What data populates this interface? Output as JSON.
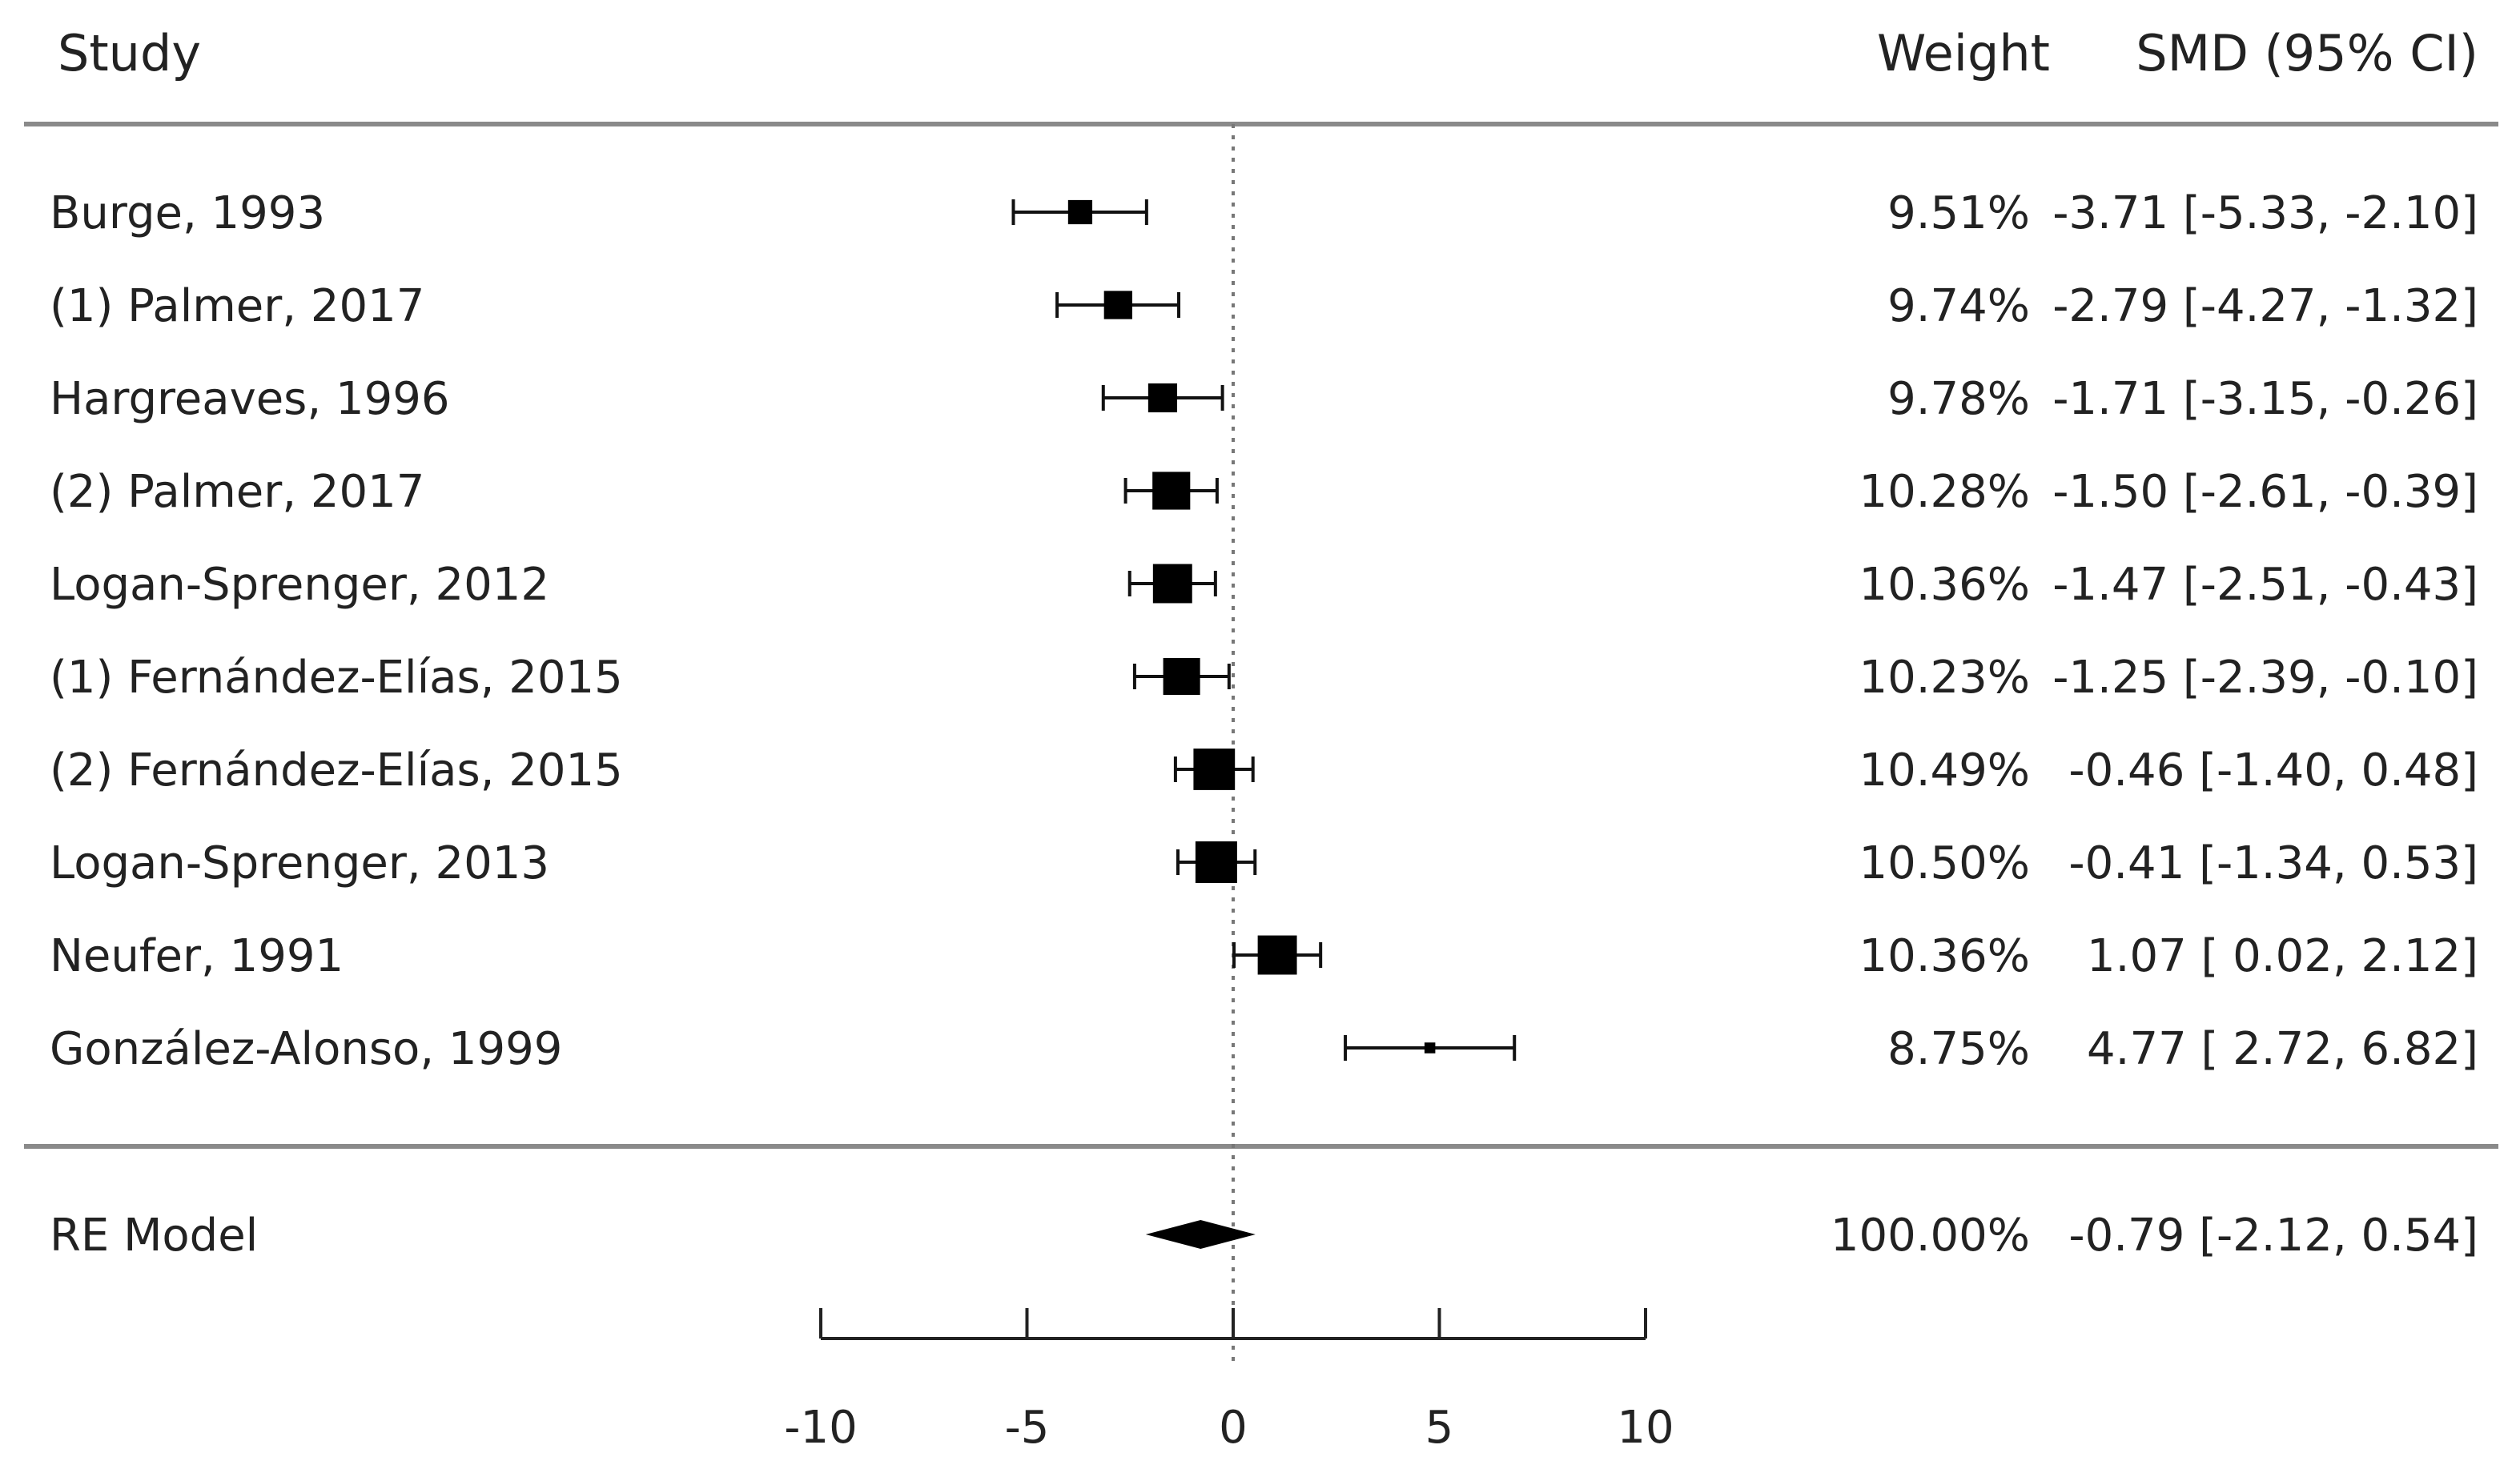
{
  "chart_data": {
    "type": "forest",
    "headers": {
      "study": "Study",
      "weight": "Weight",
      "effect": "SMD (95% CI)"
    },
    "studies": [
      {
        "name": "Burge, 1993",
        "weight": "9.51%",
        "smd": -3.71,
        "lo": -5.33,
        "hi": -2.1,
        "label": "-3.71 [-5.33, -2.10]"
      },
      {
        "name": "(1) Palmer, 2017",
        "weight": "9.74%",
        "smd": -2.79,
        "lo": -4.27,
        "hi": -1.32,
        "label": "-2.79 [-4.27, -1.32]"
      },
      {
        "name": "Hargreaves, 1996",
        "weight": "9.78%",
        "smd": -1.71,
        "lo": -3.15,
        "hi": -0.26,
        "label": "-1.71 [-3.15, -0.26]"
      },
      {
        "name": "(2) Palmer, 2017",
        "weight": "10.28%",
        "smd": -1.5,
        "lo": -2.61,
        "hi": -0.39,
        "label": "-1.50 [-2.61, -0.39]"
      },
      {
        "name": "Logan-Sprenger, 2012",
        "weight": "10.36%",
        "smd": -1.47,
        "lo": -2.51,
        "hi": -0.43,
        "label": "-1.47 [-2.51, -0.43]"
      },
      {
        "name": "(1) Fernández-Elías, 2015",
        "weight": "10.23%",
        "smd": -1.25,
        "lo": -2.39,
        "hi": -0.1,
        "label": "-1.25 [-2.39, -0.10]"
      },
      {
        "name": "(2) Fernández-Elías, 2015",
        "weight": "10.49%",
        "smd": -0.46,
        "lo": -1.4,
        "hi": 0.48,
        "label": "-0.46 [-1.40,  0.48]"
      },
      {
        "name": "Logan-Sprenger, 2013",
        "weight": "10.50%",
        "smd": -0.41,
        "lo": -1.34,
        "hi": 0.53,
        "label": "-0.41 [-1.34,  0.53]"
      },
      {
        "name": "Neufer, 1991",
        "weight": "10.36%",
        "smd": 1.07,
        "lo": 0.02,
        "hi": 2.12,
        "label": "1.07 [ 0.02,  2.12]"
      },
      {
        "name": "González-Alonso, 1999",
        "weight": "8.75%",
        "smd": 4.77,
        "lo": 2.72,
        "hi": 6.82,
        "label": "4.77 [ 2.72,  6.82]"
      }
    ],
    "summary": {
      "name": "RE Model",
      "weight": "100.00%",
      "smd": -0.79,
      "lo": -2.12,
      "hi": 0.54,
      "label": "-0.79 [-2.12,  0.54]"
    },
    "xlim": [
      -10,
      10
    ],
    "ticks": [
      -10,
      -5,
      0,
      5,
      10
    ],
    "tick_labels": [
      "-10",
      "-5",
      "0",
      "5",
      "10"
    ],
    "reference_line": 0
  }
}
